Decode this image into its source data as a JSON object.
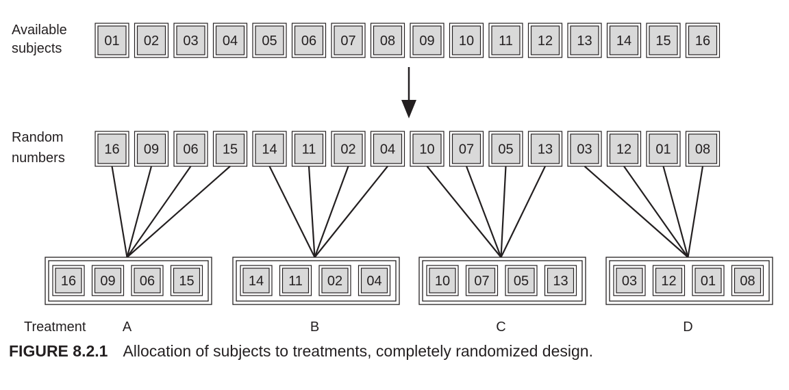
{
  "labels": {
    "available_line1": "Available",
    "available_line2": "subjects",
    "random_line1": "Random",
    "random_line2": "numbers",
    "treatment": "Treatment"
  },
  "available_subjects": [
    "01",
    "02",
    "03",
    "04",
    "05",
    "06",
    "07",
    "08",
    "09",
    "10",
    "11",
    "12",
    "13",
    "14",
    "15",
    "16"
  ],
  "random_numbers": [
    "16",
    "09",
    "06",
    "15",
    "14",
    "11",
    "02",
    "04",
    "10",
    "07",
    "05",
    "13",
    "03",
    "12",
    "01",
    "08"
  ],
  "treatments": [
    {
      "name": "A",
      "subjects": [
        "16",
        "09",
        "06",
        "15"
      ]
    },
    {
      "name": "B",
      "subjects": [
        "14",
        "11",
        "02",
        "04"
      ]
    },
    {
      "name": "C",
      "subjects": [
        "10",
        "07",
        "05",
        "13"
      ]
    },
    {
      "name": "D",
      "subjects": [
        "03",
        "12",
        "01",
        "08"
      ]
    }
  ],
  "caption": {
    "figure_number": "FIGURE 8.2.1",
    "text": "Allocation of subjects to treatments, completely randomized design."
  },
  "colors": {
    "box_fill": "#d9d9d9",
    "stroke": "#231f20",
    "caption_number": "#231f20"
  }
}
